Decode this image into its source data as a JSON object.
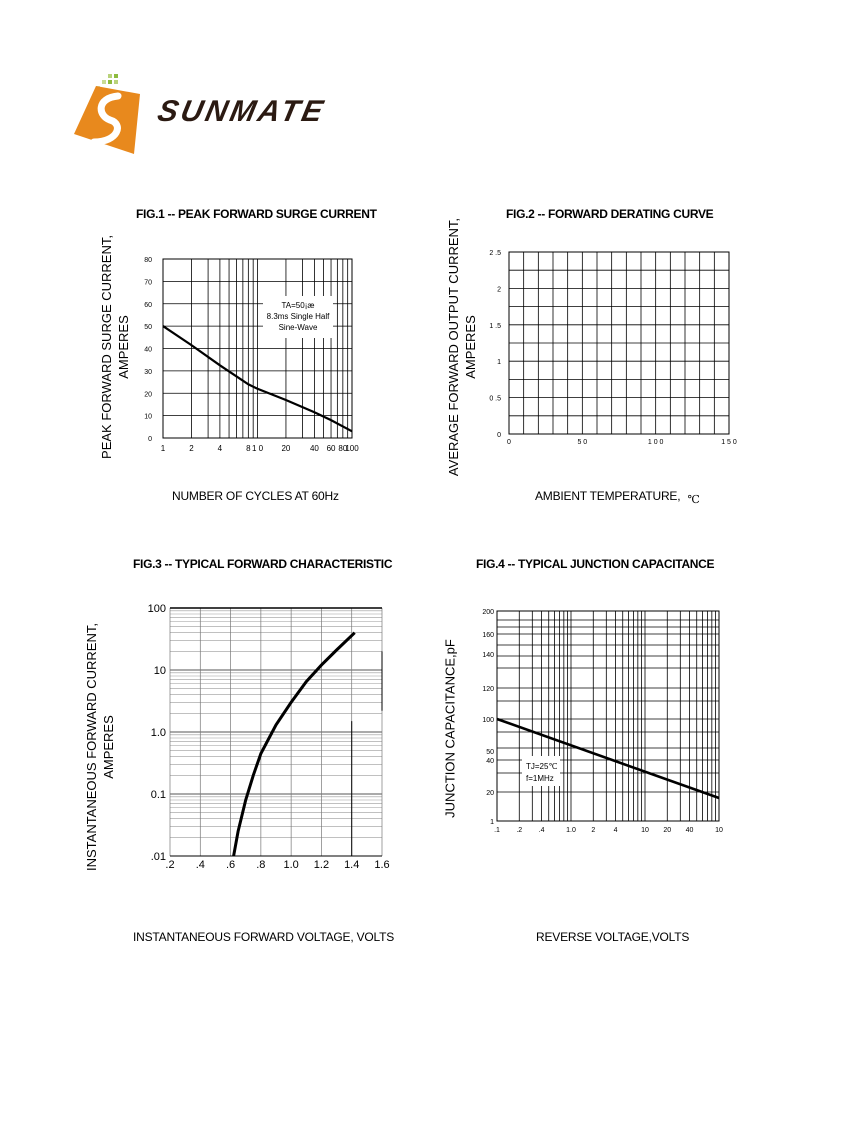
{
  "header": {
    "logo_text": "SUNMATE",
    "logo_colors": {
      "orange": "#e8891d",
      "dark": "#2b1a12",
      "green": "#8dbb3f"
    }
  },
  "chart_data": [
    {
      "id": "fig1",
      "type": "line",
      "title": "FIG.1 -- PEAK FORWARD SURGE CURRENT",
      "ylabel_line1": "PEAK FORWARD SURGE CURRENT,",
      "ylabel_line2": "AMPERES",
      "xlabel": "NUMBER  OF  CYCLES AT 60Hz",
      "xscale": "log",
      "xlim": [
        1,
        100
      ],
      "ylim": [
        0,
        80
      ],
      "xticks": [
        1,
        2,
        4,
        8,
        10,
        20,
        40,
        60,
        80,
        100
      ],
      "xtick_labels": [
        "1",
        "2",
        "4",
        "8",
        "1 0",
        "20",
        "40",
        "60",
        "80",
        "100"
      ],
      "yticks": [
        0,
        10,
        20,
        30,
        40,
        50,
        60,
        70,
        80
      ],
      "ytick_labels": [
        "0",
        "10",
        "20",
        "30",
        "40",
        "50",
        "60",
        "70",
        "80"
      ],
      "annotation": [
        "TA=50¡æ",
        "8.3ms Single Half",
        "Sine-Wave"
      ],
      "series": [
        {
          "name": "surge",
          "x": [
            1,
            2,
            4,
            8,
            10,
            20,
            40,
            60,
            100
          ],
          "y": [
            50,
            41.5,
            32.5,
            24,
            22,
            17,
            11.5,
            8,
            3
          ]
        }
      ]
    },
    {
      "id": "fig2",
      "type": "line",
      "title": "FIG.2 -- FORWARD DERATING CURVE",
      "ylabel_line1": "AVERAGE FORWARD OUTPUT CURRENT,",
      "ylabel_line2": "AMPERES",
      "xlabel": "AMBIENT  TEMPERATURE,",
      "xlabel_unit": "℃",
      "xlim": [
        0,
        150
      ],
      "ylim": [
        0,
        2.5
      ],
      "xticks": [
        0,
        50,
        100,
        150
      ],
      "xtick_labels": [
        "0",
        "5 0",
        "1 0 0",
        "1 5 0"
      ],
      "yticks": [
        0,
        0.5,
        1,
        1.5,
        2,
        2.5
      ],
      "ytick_labels": [
        "0",
        "0 .5",
        "1",
        "1 .5",
        "2",
        "2 .5"
      ],
      "series": []
    },
    {
      "id": "fig3",
      "type": "line",
      "title": "FIG.3 -- TYPICAL FORWARD CHARACTERISTIC",
      "ylabel_line1": "INSTANTANEOUS FORWARD CURRENT,",
      "ylabel_line2": "AMPERES",
      "xlabel": "INSTANTANEOUS FORWARD VOLTAGE,  VOLTS",
      "yscale": "log",
      "xlim": [
        0.2,
        1.6
      ],
      "ylim": [
        0.01,
        100
      ],
      "xticks": [
        0.2,
        0.4,
        0.6,
        0.8,
        1.0,
        1.2,
        1.4,
        1.6
      ],
      "xtick_labels": [
        ".2",
        ".4",
        ".6",
        ".8",
        "1.0",
        "1.2",
        "1.4",
        "1.6"
      ],
      "yticks": [
        0.01,
        0.1,
        1,
        10,
        100
      ],
      "ytick_labels": [
        ".01",
        "0.1",
        "1.0",
        "10",
        "100"
      ],
      "series": [
        {
          "name": "IF",
          "x": [
            0.62,
            0.65,
            0.7,
            0.75,
            0.8,
            0.9,
            1.0,
            1.1,
            1.2,
            1.3,
            1.42
          ],
          "y": [
            0.01,
            0.025,
            0.08,
            0.2,
            0.45,
            1.3,
            3,
            6.5,
            12,
            21,
            40
          ]
        }
      ]
    },
    {
      "id": "fig4",
      "type": "line",
      "title": "FIG.4 -- TYPICAL JUNCTION CAPACITANCE",
      "ylabel_line1": "JUNCTION CAPACITANCE,pF",
      "xlabel": "REVERSE VOLTAGE,VOLTS",
      "xscale": "log",
      "xlim": [
        0.1,
        100
      ],
      "ylim": [
        1,
        200
      ],
      "xtick_labels": [
        ".1",
        ".2",
        ".4",
        "1.0",
        "2",
        "4",
        "10",
        "20",
        "40",
        "10"
      ],
      "ytick_labels": [
        "1",
        "20",
        "40",
        "50",
        "100",
        "120",
        "140",
        "160",
        "200"
      ],
      "annotation": [
        "TJ=25℃",
        "f=1MHz"
      ],
      "series": [
        {
          "name": "Cj",
          "x": [
            0.1,
            100
          ],
          "y_label_start": "100",
          "y_label_end": "18"
        }
      ]
    }
  ]
}
